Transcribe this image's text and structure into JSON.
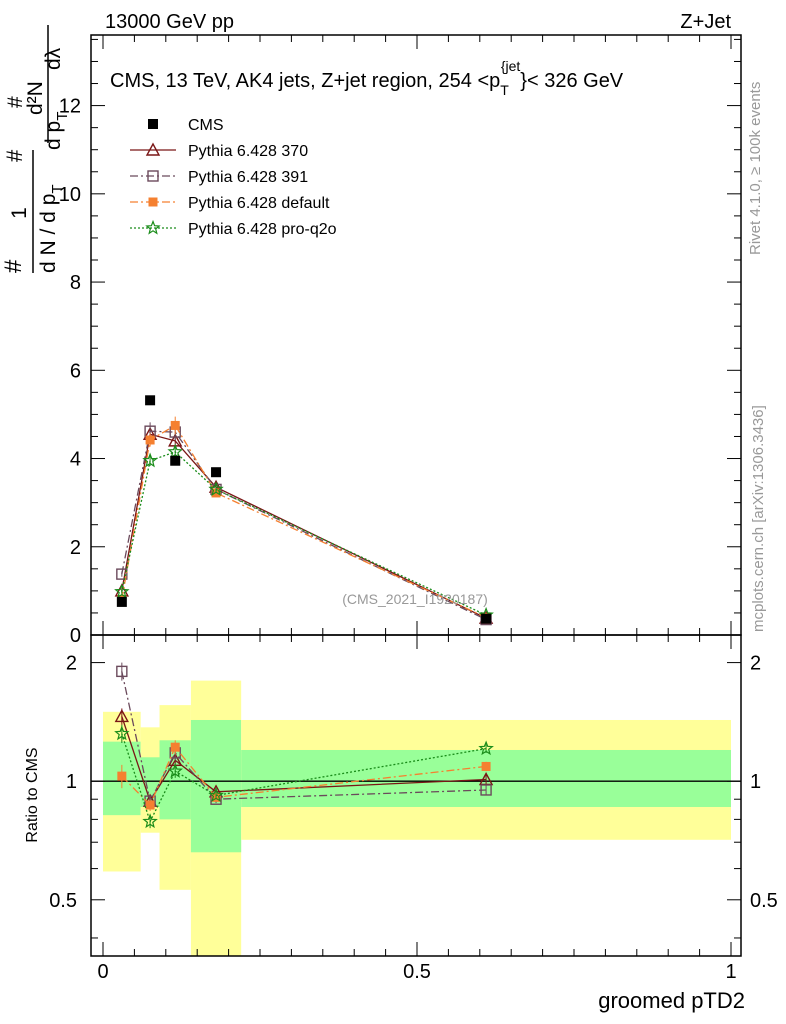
{
  "header": {
    "left": "13000 GeV pp",
    "right": "Z+Jet"
  },
  "side_labels": {
    "rivet": "Rivet 4.1.0, ≥ 100k events",
    "mcplots": "mcplots.cern.ch [arXiv:1306.3436]"
  },
  "watermark": "(CMS_2021_I1920187)",
  "colors": {
    "cms": "#000000",
    "p370": "#7a1616",
    "p391": "#6b4a5c",
    "pdefault": "#f58030",
    "pq2o": "#1a8c1a",
    "band_inner": "#99ff99",
    "band_outer": "#ffff99"
  },
  "chart_data": [
    {
      "type": "scatter",
      "panel": "main",
      "title": "CMS, 13 TeV, AK4 jets, Z+jet region, 254 <p_T^{jet}< 326 GeV",
      "title_parts": {
        "pre": "CMS, 13 TeV, AK4 jets, Z+jet region, 254 <p",
        "sub": "T",
        "sup": "{jet",
        "brace": "}",
        "post": "< 326 GeV"
      },
      "ylabel_parts": {
        "one": "1",
        "hash": "#",
        "denom": "d N / d p",
        "sub": "T",
        "num": "d²N",
        "dpt": "d p",
        "dl": "dλ"
      },
      "xlim": [
        0,
        1
      ],
      "ylim": [
        0,
        13.6
      ],
      "yticks": [
        0,
        2,
        4,
        6,
        8,
        10,
        12
      ],
      "ytick_labels": [
        "0",
        "2",
        "4",
        "6",
        "8",
        "10",
        "12"
      ],
      "legend": [
        {
          "key": "cms",
          "label": "CMS"
        },
        {
          "key": "p370",
          "label": "Pythia 6.428 370"
        },
        {
          "key": "p391",
          "label": "Pythia 6.428 391"
        },
        {
          "key": "pdefault",
          "label": "Pythia 6.428 default"
        },
        {
          "key": "pq2o",
          "label": "Pythia 6.428 pro-q2o"
        }
      ],
      "x": [
        0.03,
        0.075,
        0.115,
        0.18,
        0.61
      ],
      "data": {
        "name": "CMS",
        "values": [
          0.75,
          5.32,
          3.95,
          3.69,
          0.37
        ]
      },
      "series": [
        {
          "key": "p370",
          "name": "Pythia 6.428 370",
          "values": [
            1.0,
            4.55,
            4.4,
            3.35,
            0.38
          ],
          "errors": [
            0.05,
            0.15,
            0.15,
            0.08,
            0.02
          ]
        },
        {
          "key": "p391",
          "name": "Pythia 6.428 391",
          "values": [
            1.38,
            4.62,
            4.6,
            3.3,
            0.35
          ],
          "errors": [
            0.06,
            0.2,
            0.18,
            0.08,
            0.02
          ]
        },
        {
          "key": "pdefault",
          "name": "Pythia 6.428 default",
          "values": [
            0.8,
            4.42,
            4.75,
            3.22,
            0.4
          ],
          "errors": [
            0.05,
            0.15,
            0.2,
            0.08,
            0.02
          ]
        },
        {
          "key": "pq2o",
          "name": "Pythia 6.428 pro-q2o",
          "values": [
            0.98,
            3.95,
            4.15,
            3.3,
            0.45
          ],
          "errors": [
            0.05,
            0.12,
            0.14,
            0.08,
            0.02
          ]
        }
      ]
    },
    {
      "type": "scatter",
      "panel": "ratio",
      "ylabel": "Ratio to CMS",
      "xlabel": "groomed pTD2",
      "xlim": [
        0,
        1
      ],
      "ylim": [
        0.36,
        2.35
      ],
      "log_y": true,
      "yticks": [
        0.5,
        1,
        2
      ],
      "ytick_labels": [
        "0.5",
        "1",
        "2"
      ],
      "xticks": [
        0,
        0.5,
        1
      ],
      "xtick_labels": [
        "0",
        "0.5",
        "1"
      ],
      "bins": [
        {
          "lo": 0.0,
          "hi": 0.06,
          "inner": [
            0.82,
            1.26
          ],
          "outer": [
            0.59,
            1.5
          ]
        },
        {
          "lo": 0.06,
          "hi": 0.09,
          "inner": [
            0.86,
            1.15
          ],
          "outer": [
            0.74,
            1.37
          ]
        },
        {
          "lo": 0.09,
          "hi": 0.14,
          "inner": [
            0.8,
            1.27
          ],
          "outer": [
            0.53,
            1.56
          ]
        },
        {
          "lo": 0.14,
          "hi": 0.22,
          "inner": [
            0.66,
            1.43
          ],
          "outer": [
            0.3,
            1.8
          ]
        },
        {
          "lo": 0.22,
          "hi": 1.0,
          "inner": [
            0.86,
            1.2
          ],
          "outer": [
            0.71,
            1.43
          ]
        }
      ],
      "x": [
        0.03,
        0.075,
        0.115,
        0.18,
        0.61
      ],
      "series": [
        {
          "key": "p370",
          "name": "Pythia 6.428 370",
          "values": [
            1.46,
            0.89,
            1.13,
            0.94,
            1.01
          ],
          "errors": [
            0.07,
            0.03,
            0.04,
            0.02,
            0.03
          ]
        },
        {
          "key": "p391",
          "name": "Pythia 6.428 391",
          "values": [
            1.9,
            0.89,
            1.18,
            0.9,
            0.95
          ],
          "errors": [
            0.1,
            0.03,
            0.05,
            0.02,
            0.03
          ]
        },
        {
          "key": "pdefault",
          "name": "Pythia 6.428 default",
          "values": [
            1.03,
            0.87,
            1.22,
            0.91,
            1.09
          ],
          "errors": [
            0.07,
            0.03,
            0.05,
            0.02,
            0.03
          ]
        },
        {
          "key": "pq2o",
          "name": "Pythia 6.428 pro-q2o",
          "values": [
            1.32,
            0.79,
            1.06,
            0.92,
            1.21
          ],
          "errors": [
            0.07,
            0.03,
            0.04,
            0.02,
            0.03
          ]
        }
      ]
    }
  ]
}
